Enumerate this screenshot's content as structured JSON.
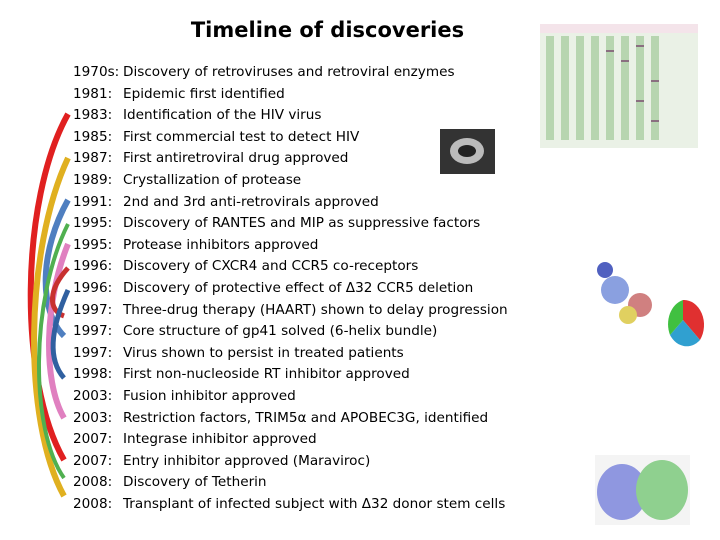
{
  "title": "Timeline of discoveries",
  "items": [
    {
      "year": "1970s:",
      "text": "Discovery of retroviruses and retroviral enzymes"
    },
    {
      "year": "1981:",
      "text": "Epidemic first identified"
    },
    {
      "year": "1983:",
      "text": "Identification of the HIV virus"
    },
    {
      "year": "1985:",
      "text": "First commercial test to detect HIV"
    },
    {
      "year": "1987:",
      "text": "First antiretroviral drug approved"
    },
    {
      "year": "1989:",
      "text": "Crystallization of protease"
    },
    {
      "year": "1991:",
      "text": "2nd and 3rd anti-retrovirals  approved"
    },
    {
      "year": "1995:",
      "text": "Discovery of RANTES and MIP as suppressive factors"
    },
    {
      "year": "1995:",
      "text": "Protease inhibitors approved"
    },
    {
      "year": "1996:",
      "text": "Discovery of CXCR4 and CCR5 co-receptors"
    },
    {
      "year": "1996:",
      "text": "Discovery of protective effect of Δ32 CCR5 deletion"
    },
    {
      "year": "1997:",
      "text": "Three-drug therapy (HAART) shown to delay progression"
    },
    {
      "year": "1997:",
      "text": "Core structure of gp41 solved (6-helix bundle)"
    },
    {
      "year": "1997:",
      "text": "Virus shown to persist in treated patients"
    },
    {
      "year": "1998:",
      "text": "First non-nucleoside RT inhibitor approved"
    },
    {
      "year": "2003:",
      "text": "Fusion inhibitor approved"
    },
    {
      "year": "2003:",
      "text": "Restriction factors, TRIM5α and APOBEC3G, identified"
    },
    {
      "year": "2007:",
      "text": "Integrase inhibitor approved"
    },
    {
      "year": "2007:",
      "text": "Entry inhibitor approved  (Maraviroc)"
    },
    {
      "year": "2008:",
      "text": "Discovery of Tetherin"
    },
    {
      "year": "2008:",
      "text": "Transplant of infected subject with Δ32 donor stem cells"
    }
  ]
}
